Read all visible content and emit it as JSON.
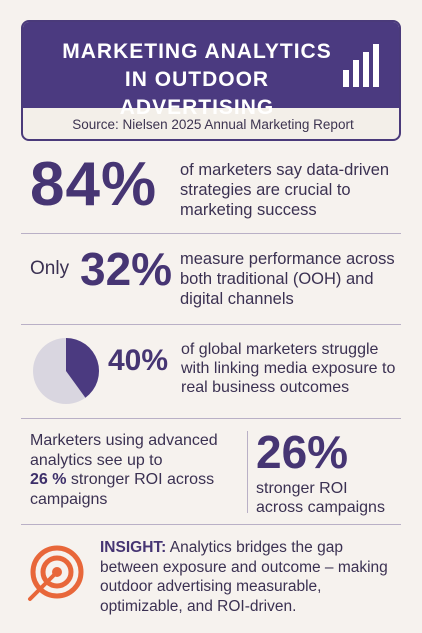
{
  "header": {
    "title_line1": "MARKETING ANALYTICS",
    "title_line2": "IN OUTDOOR ADVERTISING",
    "source": "Source: Nielsen 2025 Annual Marketing Report",
    "icon": "bar-chart-icon"
  },
  "stat1": {
    "value": "84%",
    "description": "of marketers say data-driven strategies are crucial to marketing success"
  },
  "stat2": {
    "prefix": "Only",
    "value": "32%",
    "description": "measure performance across both traditional (OOH) and digital channels"
  },
  "stat3": {
    "value": "40%",
    "fraction": 0.4,
    "icon": "pie-chart-icon",
    "description": "of global marketers struggle with linking media exposure to real business outcomes"
  },
  "stat4": {
    "left_text_before": "Marketers using advanced analytics see up to",
    "left_strong": "26 %",
    "left_text_after": "stronger ROI across campaigns",
    "value": "26%",
    "description": "stronger ROI across campaigns"
  },
  "insight": {
    "label": "INSIGHT:",
    "text": "Analytics bridges the gap between exposure and outcome – making outdoor advertising measurable, optimizable, and ROI-driven.",
    "icon": "target-icon"
  },
  "colors": {
    "primary": "#4b3a80",
    "accent": "#e8673a",
    "pie_light": "#d9d6e0"
  }
}
